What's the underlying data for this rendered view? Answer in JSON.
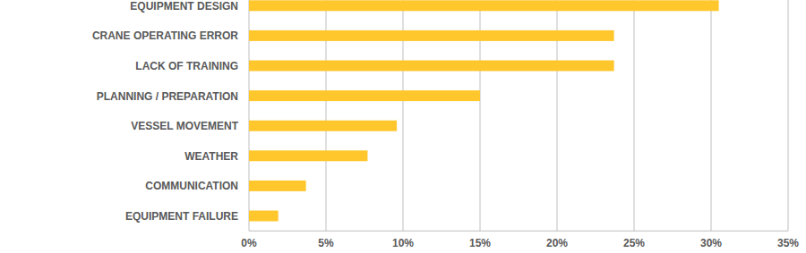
{
  "chart_data": {
    "type": "bar",
    "orientation": "horizontal",
    "categories": [
      "EQUIPMENT DESIGN",
      "CRANE OPERATING ERROR",
      "LACK OF TRAINING",
      "PLANNING / PREPARATION",
      "VESSEL MOVEMENT",
      "WEATHER",
      "COMMUNICATION",
      "EQUIPMENT FAILURE"
    ],
    "values": [
      30.5,
      23.7,
      23.7,
      15.0,
      9.6,
      7.7,
      3.7,
      1.9
    ],
    "color": "#ffc72c",
    "xlim": [
      0,
      35
    ],
    "xticks": [
      {
        "value": 0,
        "label": "0%"
      },
      {
        "value": 5,
        "label": "5%"
      },
      {
        "value": 10,
        "label": "10%"
      },
      {
        "value": 15,
        "label": "15%"
      },
      {
        "value": 20,
        "label": "20%"
      },
      {
        "value": 25,
        "label": "25%"
      },
      {
        "value": 30,
        "label": "30%"
      },
      {
        "value": 35,
        "label": "35%"
      }
    ],
    "grid": true
  }
}
